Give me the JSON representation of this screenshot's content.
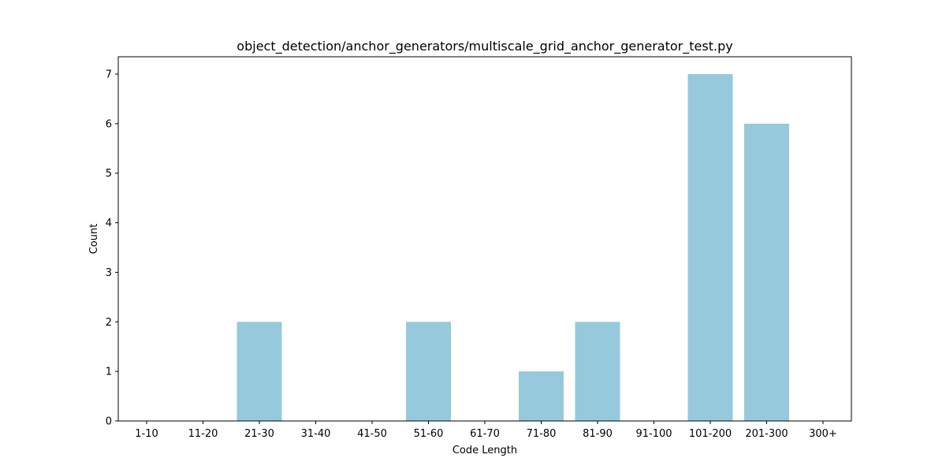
{
  "chart_data": {
    "type": "bar",
    "title": "object_detection/anchor_generators/multiscale_grid_anchor_generator_test.py",
    "xlabel": "Code Length",
    "ylabel": "Count",
    "categories": [
      "1-10",
      "11-20",
      "21-30",
      "31-40",
      "41-50",
      "51-60",
      "61-70",
      "71-80",
      "81-90",
      "91-100",
      "101-200",
      "201-300",
      "300+"
    ],
    "values": [
      0,
      0,
      2,
      0,
      0,
      2,
      0,
      1,
      2,
      0,
      7,
      6,
      0
    ],
    "ylim": [
      0,
      7.35
    ],
    "yticks": [
      "0",
      "1",
      "2",
      "3",
      "4",
      "5",
      "6",
      "7"
    ],
    "bar_color": "#96c9dc",
    "grid": false,
    "legend": "none"
  }
}
